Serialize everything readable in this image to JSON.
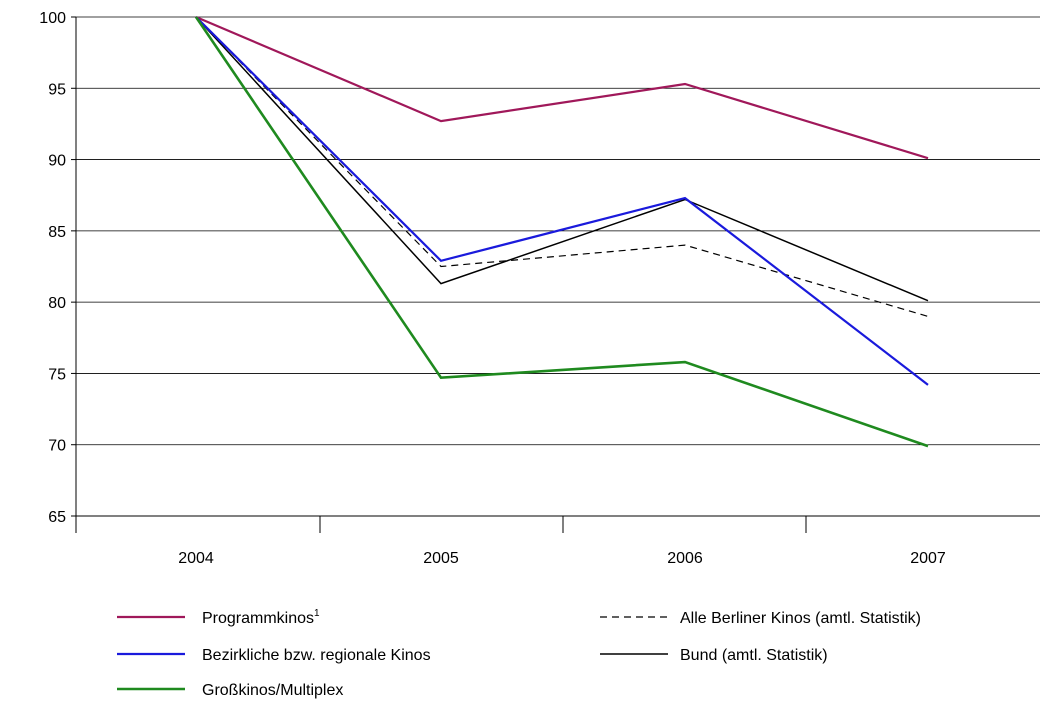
{
  "chart_data": {
    "type": "line",
    "categories": [
      "2004",
      "2005",
      "2006",
      "2007"
    ],
    "ylim": [
      65,
      100
    ],
    "yticks": [
      65,
      70,
      75,
      80,
      85,
      90,
      95,
      100
    ],
    "grid": true,
    "legend_position": "bottom",
    "series": [
      {
        "name": "Programmkinos",
        "name_sup": "1",
        "values": [
          100,
          92.7,
          95.3,
          90.1
        ],
        "color": "#a0185a",
        "dash": "solid",
        "width": 2.2
      },
      {
        "name": "Bezirkliche bzw. regionale Kinos",
        "values": [
          100,
          82.9,
          87.3,
          74.2
        ],
        "color": "#1a1adc",
        "dash": "solid",
        "width": 2.2
      },
      {
        "name": "Großkinos/Multiplex",
        "values": [
          100,
          74.7,
          75.8,
          69.9
        ],
        "color": "#1f8a1f",
        "dash": "solid",
        "width": 2.6
      },
      {
        "name": "Alle Berliner Kinos (amtl. Statistik)",
        "values": [
          100,
          82.5,
          84.0,
          79.0
        ],
        "color": "#000000",
        "dash": "dashed",
        "width": 1.2
      },
      {
        "name": "Bund (amtl. Statistik)",
        "values": [
          100,
          81.3,
          87.2,
          80.1
        ],
        "color": "#000000",
        "dash": "solid",
        "width": 1.5
      }
    ]
  }
}
